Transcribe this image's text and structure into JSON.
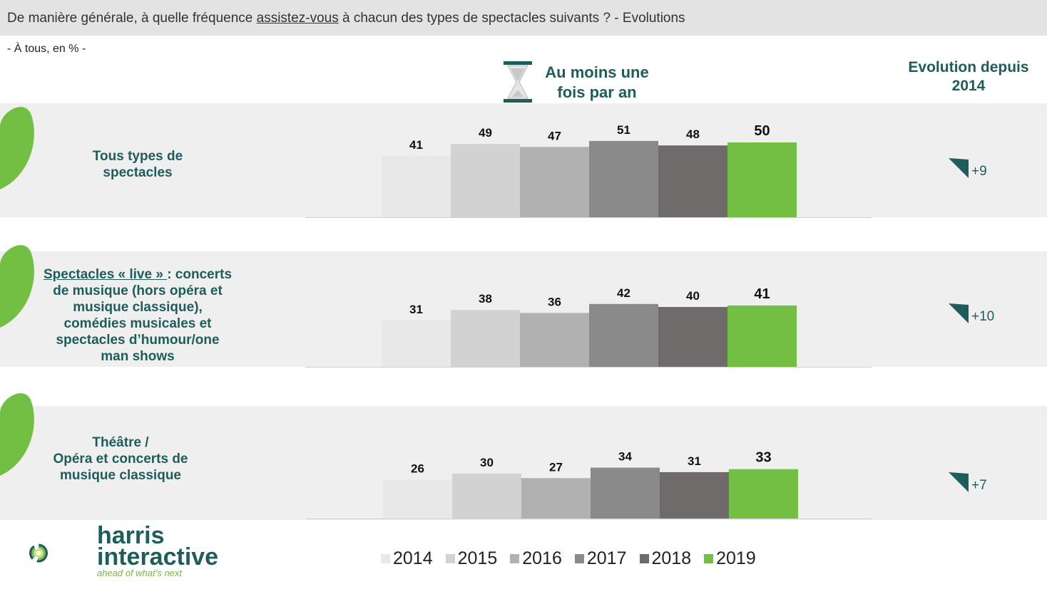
{
  "header": {
    "title_before": "De manière générale, à quelle fréquence ",
    "title_underlined": "assistez-vous",
    "title_after": " à chacun des types de spectacles suivants ? - Evolutions",
    "subtitle": "- À tous, en % -"
  },
  "measure": {
    "line1": "Au moins une",
    "line2": "fois par an",
    "icon": "hourglass-icon"
  },
  "evolution_header": {
    "line1": "Evolution depuis",
    "line2": "2014"
  },
  "rows": [
    {
      "label_lines": [
        "Tous types de",
        "spectacles"
      ],
      "underlined": "",
      "label_first_rest": "",
      "evolution": "+9"
    },
    {
      "label_lines": [
        "de musique (hors opéra et",
        "musique classique),",
        "comédies musicales et",
        "spectacles d’humour/one",
        "man shows"
      ],
      "underlined": "Spectacles « live » ",
      "label_first_rest": ": concerts",
      "evolution": "+10"
    },
    {
      "label_lines": [
        "Théâtre /",
        "Opéra et concerts de",
        "musique classique"
      ],
      "underlined": "",
      "label_first_rest": "",
      "evolution": "+7"
    }
  ],
  "chart_data": {
    "type": "bar",
    "categories": [
      "Tous types de spectacles",
      "Spectacles « live »",
      "Théâtre / Opéra et concerts de musique classique"
    ],
    "series": [
      {
        "name": "2014",
        "values": [
          41,
          31,
          26
        ]
      },
      {
        "name": "2015",
        "values": [
          49,
          38,
          30
        ]
      },
      {
        "name": "2016",
        "values": [
          47,
          36,
          27
        ]
      },
      {
        "name": "2017",
        "values": [
          51,
          42,
          34
        ]
      },
      {
        "name": "2018",
        "values": [
          48,
          40,
          31
        ]
      },
      {
        "name": "2019",
        "values": [
          50,
          41,
          33
        ]
      }
    ],
    "colors": [
      "#e8e8e8",
      "#d2d2d2",
      "#b1b1b1",
      "#8a8a8a",
      "#6e6b6a",
      "#72bf44"
    ],
    "highlight_series": "2019",
    "legend": [
      "2014",
      "2015",
      "2016",
      "2017",
      "2018",
      "2019"
    ],
    "legend_position": "bottom"
  },
  "colors": {
    "accent_green": "#72bf44",
    "teal": "#1f5c5c",
    "band": "#efefef"
  },
  "logo": {
    "line1": "harris",
    "line2": "interactive",
    "tagline": "ahead of what’s next"
  }
}
